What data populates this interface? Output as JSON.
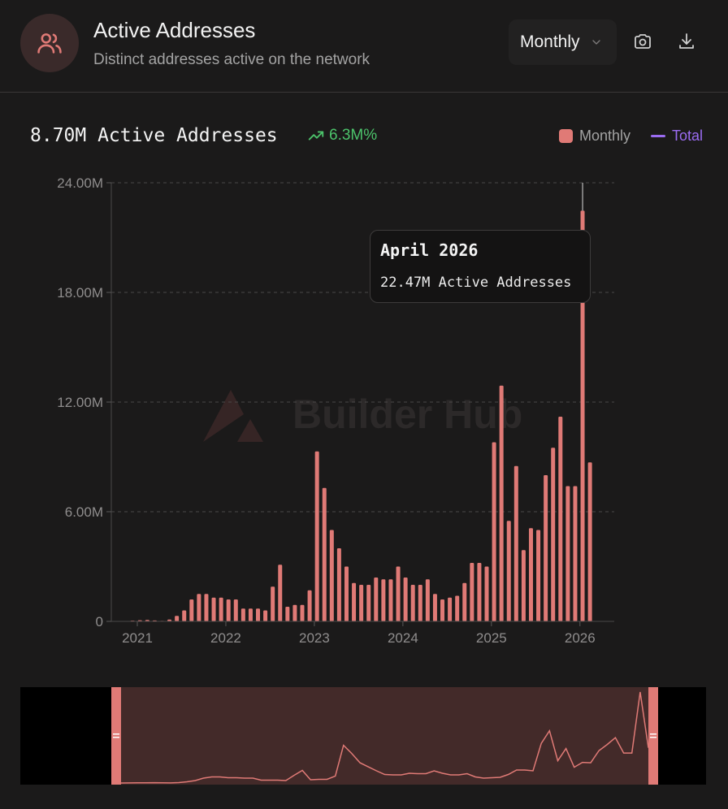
{
  "header": {
    "title": "Active Addresses",
    "subtitle": "Distinct addresses active on the network",
    "period": "Monthly",
    "icons": [
      "users-icon",
      "camera-icon",
      "download-icon"
    ]
  },
  "summary": {
    "value_text": "8.70M Active Addresses",
    "change_text": "6.3M%",
    "legend": [
      {
        "label": "Monthly",
        "color": "#e07a76"
      },
      {
        "label": "Total",
        "color": "#9b6cf2"
      }
    ]
  },
  "watermark": "Builder Hub",
  "tooltip": {
    "title": "April 2026",
    "value_text": "22.47M Active Addresses"
  },
  "chart_data": {
    "type": "bar",
    "series_name": "Monthly",
    "color": "#e07a76",
    "ylim": [
      0,
      24000000
    ],
    "y_ticks": [
      0,
      6000000,
      12000000,
      18000000,
      24000000
    ],
    "y_tick_labels": [
      "0",
      "6.00M",
      "12.00M",
      "18.00M",
      "24.00M"
    ],
    "x_tick_labels": [
      "2021",
      "2022",
      "2023",
      "2024",
      "2025",
      "2026"
    ],
    "categories": [
      "2021-01",
      "2021-02",
      "2021-03",
      "2021-04",
      "2021-05",
      "2021-06",
      "2021-07",
      "2021-08",
      "2021-09",
      "2021-10",
      "2021-11",
      "2021-12",
      "2022-01",
      "2022-02",
      "2022-03",
      "2022-04",
      "2022-05",
      "2022-06",
      "2022-07",
      "2022-08",
      "2022-09",
      "2022-10",
      "2022-11",
      "2022-12",
      "2023-01",
      "2023-02",
      "2023-03",
      "2023-04",
      "2023-05",
      "2023-06",
      "2023-07",
      "2023-08",
      "2023-09",
      "2023-10",
      "2023-11",
      "2023-12",
      "2024-01",
      "2024-02",
      "2024-03",
      "2024-04",
      "2024-05",
      "2024-06",
      "2024-07",
      "2024-08",
      "2024-09",
      "2024-10",
      "2024-11",
      "2024-12",
      "2025-01",
      "2025-02",
      "2025-03",
      "2025-04",
      "2025-05",
      "2025-06",
      "2025-07",
      "2025-08",
      "2025-09",
      "2025-10",
      "2025-11",
      "2025-12",
      "2026-01",
      "2026-02",
      "2026-03",
      "2026-04",
      "2026-05"
    ],
    "values": [
      0,
      20000,
      40000,
      60000,
      80000,
      50000,
      30000,
      100000,
      300000,
      600000,
      1200000,
      1500000,
      1500000,
      1300000,
      1300000,
      1200000,
      1200000,
      700000,
      700000,
      700000,
      600000,
      1900000,
      3100000,
      800000,
      900000,
      900000,
      1700000,
      9300000,
      7300000,
      5000000,
      4000000,
      3000000,
      2100000,
      2000000,
      2000000,
      2400000,
      2300000,
      2300000,
      3000000,
      2400000,
      2000000,
      2000000,
      2300000,
      1500000,
      1200000,
      1300000,
      1400000,
      2100000,
      3200000,
      3200000,
      3000000,
      9800000,
      12900000,
      5500000,
      8500000,
      3900000,
      5100000,
      5000000,
      8000000,
      9500000,
      11200000,
      7400000,
      7400000,
      22470000,
      8700000
    ],
    "highlight_category": "2026-04"
  }
}
